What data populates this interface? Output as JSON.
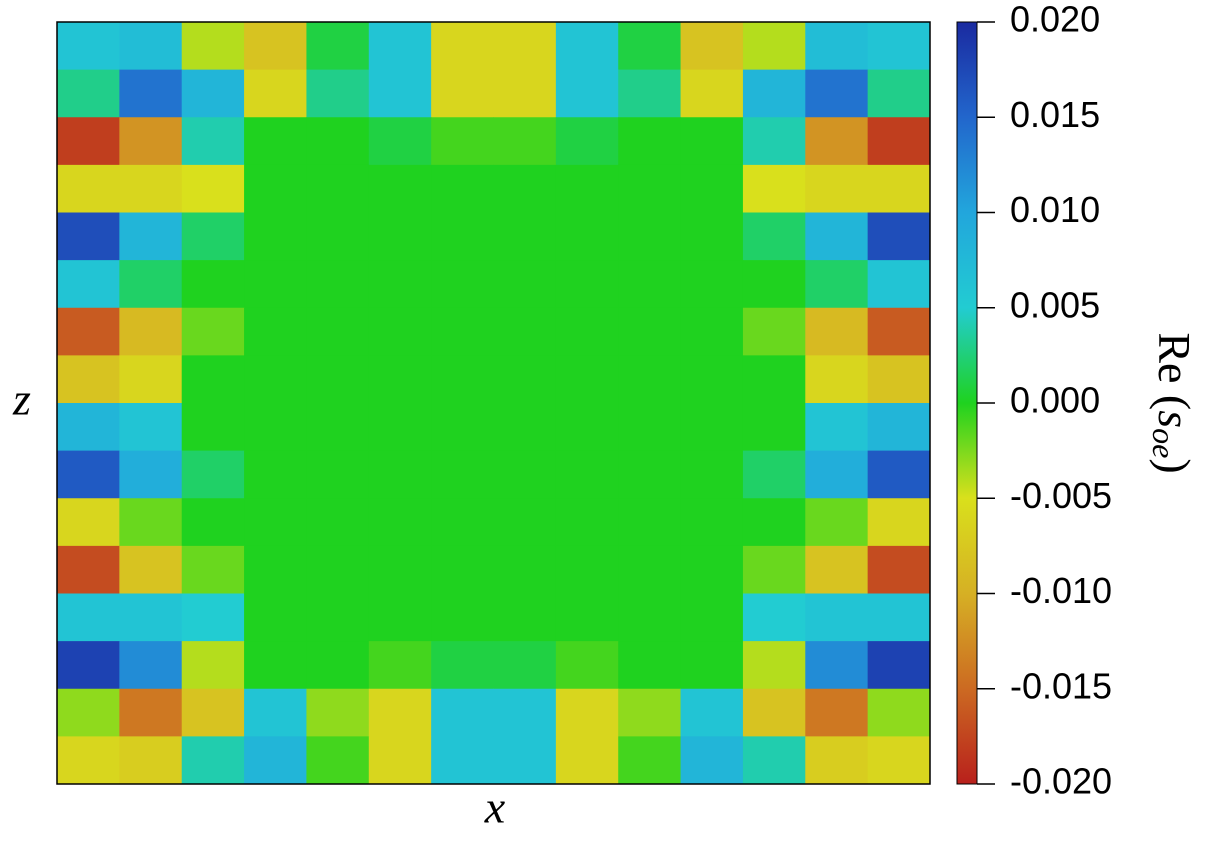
{
  "chart_data": {
    "type": "heatmap",
    "xlabel": "x",
    "ylabel": "z",
    "z": [
      [
        0.006,
        0.007,
        -0.004,
        -0.008,
        0.001,
        0.006,
        -0.006,
        -0.006,
        0.006,
        0.001,
        -0.008,
        -0.004,
        0.007,
        0.006
      ],
      [
        0.003,
        0.014,
        0.008,
        -0.006,
        0.003,
        0.006,
        -0.006,
        -0.006,
        0.006,
        0.003,
        -0.006,
        0.008,
        0.014,
        0.003
      ],
      [
        -0.018,
        -0.012,
        0.004,
        0,
        0,
        0.001,
        -0.001,
        -0.001,
        0.001,
        0,
        0,
        0.004,
        -0.012,
        -0.018
      ],
      [
        -0.006,
        -0.006,
        -0.005,
        0,
        0,
        0,
        0,
        0,
        0,
        0,
        0,
        -0.005,
        -0.006,
        -0.006
      ],
      [
        0.017,
        0.008,
        0.002,
        0,
        0,
        0,
        0,
        0,
        0,
        0,
        0,
        0.002,
        0.008,
        0.017
      ],
      [
        0.006,
        0.002,
        0,
        0,
        0,
        0,
        0,
        0,
        0,
        0,
        0,
        0,
        0.002,
        0.006
      ],
      [
        -0.016,
        -0.009,
        -0.002,
        0,
        0,
        0,
        0,
        0,
        0,
        0,
        0,
        -0.002,
        -0.009,
        -0.016
      ],
      [
        -0.008,
        -0.006,
        0,
        0,
        0,
        0,
        0,
        0,
        0,
        0,
        0,
        0,
        -0.006,
        -0.008
      ],
      [
        0.008,
        0.006,
        0,
        0,
        0,
        0,
        0,
        0,
        0,
        0,
        0,
        0,
        0.006,
        0.008
      ],
      [
        0.016,
        0.009,
        0.002,
        0,
        0,
        0,
        0,
        0,
        0,
        0,
        0,
        0.002,
        0.009,
        0.016
      ],
      [
        -0.006,
        -0.002,
        0,
        0,
        0,
        0,
        0,
        0,
        0,
        0,
        0,
        0,
        -0.002,
        -0.006
      ],
      [
        -0.017,
        -0.008,
        -0.002,
        0,
        0,
        0,
        0,
        0,
        0,
        0,
        0,
        -0.002,
        -0.008,
        -0.017
      ],
      [
        0.006,
        0.006,
        0.005,
        0,
        0,
        0,
        0,
        0,
        0,
        0,
        0,
        0.005,
        0.006,
        0.006
      ],
      [
        0.018,
        0.012,
        -0.004,
        0,
        0,
        -0.001,
        0.001,
        0.001,
        -0.001,
        0,
        0,
        -0.004,
        0.012,
        0.018
      ],
      [
        -0.003,
        -0.014,
        -0.008,
        0.006,
        -0.003,
        -0.006,
        0.006,
        0.006,
        -0.006,
        -0.003,
        0.006,
        -0.008,
        -0.014,
        -0.003
      ],
      [
        -0.006,
        -0.007,
        0.004,
        0.008,
        -0.001,
        -0.006,
        0.006,
        0.006,
        -0.006,
        -0.001,
        0.008,
        0.004,
        -0.007,
        -0.006
      ]
    ],
    "colorbar": {
      "label_prefix": "Re (",
      "label_symbol": "s",
      "label_subscript": "oe",
      "label_suffix": ")",
      "lim": [
        -0.02,
        0.02
      ],
      "ticks": [
        {
          "value": 0.02,
          "label": "0.020"
        },
        {
          "value": 0.015,
          "label": "0.015"
        },
        {
          "value": 0.01,
          "label": "0.010"
        },
        {
          "value": 0.005,
          "label": "0.005"
        },
        {
          "value": 0,
          "label": "0.000"
        },
        {
          "value": -0.005,
          "label": "-0.005"
        },
        {
          "value": -0.01,
          "label": "-0.010"
        },
        {
          "value": -0.015,
          "label": "-0.015"
        },
        {
          "value": -0.02,
          "label": "-0.020"
        }
      ],
      "colorscale": [
        {
          "value": -0.02,
          "color": "#b8201c"
        },
        {
          "value": -0.015,
          "color": "#cc6a22"
        },
        {
          "value": -0.01,
          "color": "#d6b024"
        },
        {
          "value": -0.005,
          "color": "#d9e01c"
        },
        {
          "value": 0,
          "color": "#1fd21f"
        },
        {
          "value": 0.005,
          "color": "#22ccd2"
        },
        {
          "value": 0.01,
          "color": "#22a6dc"
        },
        {
          "value": 0.015,
          "color": "#2266cc"
        },
        {
          "value": 0.02,
          "color": "#1a2aa0"
        }
      ]
    }
  }
}
